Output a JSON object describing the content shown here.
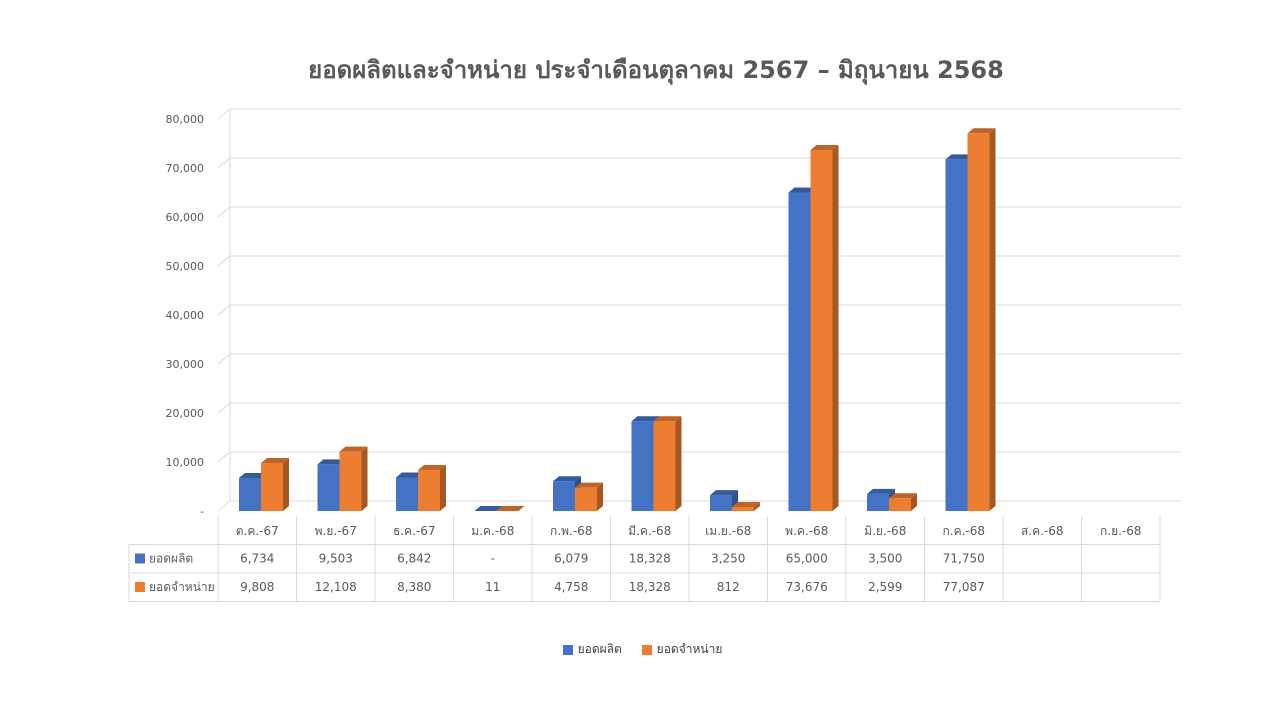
{
  "chart_data": {
    "type": "bar",
    "title": "ยอดผลิตและจำหน่าย ประจำเดือนตุลาคม 2567 – มิถุนายน 2568",
    "categories": [
      "ต.ค.-67",
      "พ.ย.-67",
      "ธ.ค.-67",
      "ม.ค.-68",
      "ก.พ.-68",
      "มี.ค.-68",
      "เม.ย.-68",
      "พ.ค.-68",
      "มิ.ย.-68",
      "ก.ค.-68",
      "ส.ค.-68",
      "ก.ย.-68"
    ],
    "series": [
      {
        "name": "ยอดผลิต",
        "color": "#4472C4",
        "values": [
          6734,
          9503,
          6842,
          0,
          6079,
          18328,
          3250,
          65000,
          3500,
          71750,
          null,
          null
        ],
        "labels": [
          "6,734",
          "9,503",
          "6,842",
          "-",
          "6,079",
          "18,328",
          "3,250",
          "65,000",
          "3,500",
          "71,750",
          "",
          ""
        ]
      },
      {
        "name": "ยอดจำหน่าย",
        "color": "#ED7D31",
        "values": [
          9808,
          12108,
          8380,
          11,
          4758,
          18328,
          812,
          73676,
          2599,
          77087,
          null,
          null
        ],
        "labels": [
          "9,808",
          "12,108",
          "8,380",
          "11",
          "4,758",
          "18,328",
          "812",
          "73,676",
          "2,599",
          "77,087",
          "",
          ""
        ]
      }
    ],
    "yticks": [
      "-",
      "10,000",
      "20,000",
      "30,000",
      "40,000",
      "50,000",
      "60,000",
      "70,000",
      "80,000"
    ],
    "ylim": [
      0,
      80000
    ],
    "grid": true,
    "legend": "bottom",
    "data_table": true,
    "style": "3d-clustered-column"
  }
}
